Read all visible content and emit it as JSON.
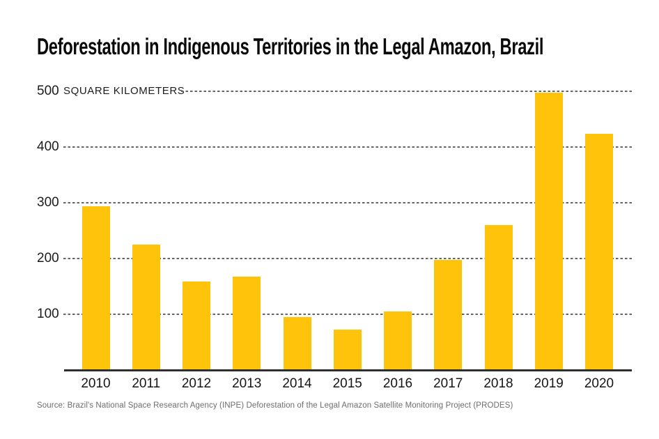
{
  "header": {
    "title": "Deforestation in Indigenous Territories in the Legal Amazon, Brazil"
  },
  "chart_data": {
    "type": "bar",
    "title": "Deforestation in Indigenous Territories in the Legal Amazon, Brazil",
    "unit_label": "SQUARE KILOMETERS",
    "categories": [
      "2010",
      "2011",
      "2012",
      "2013",
      "2014",
      "2015",
      "2016",
      "2017",
      "2018",
      "2019",
      "2020"
    ],
    "values": [
      293,
      225,
      158,
      167,
      95,
      72,
      105,
      197,
      260,
      497,
      423
    ],
    "xlabel": "",
    "ylabel": "SQUARE KILOMETERS",
    "yticks": [
      500,
      400,
      300,
      200,
      100
    ],
    "ylim": [
      0,
      500
    ],
    "grid": "horizontal dashed gridlines, labels on 100s, unit label beside topmost tick",
    "legend": "none",
    "bar_color": "#FFC30B"
  },
  "footer": {
    "source": "Source: Brazil's National Space Research Agency (INPE) Deforestation of the Legal Amazon Satellite Monitoring Project (PRODES)"
  },
  "colors": {
    "bar": "#FFC30B",
    "axis": "#2e2e2e",
    "gridline": "#646464",
    "title_text": "#0a0a0a",
    "tick_text": "#1c1c1c",
    "source_text": "#6d6d6d",
    "background": "#ffffff"
  }
}
